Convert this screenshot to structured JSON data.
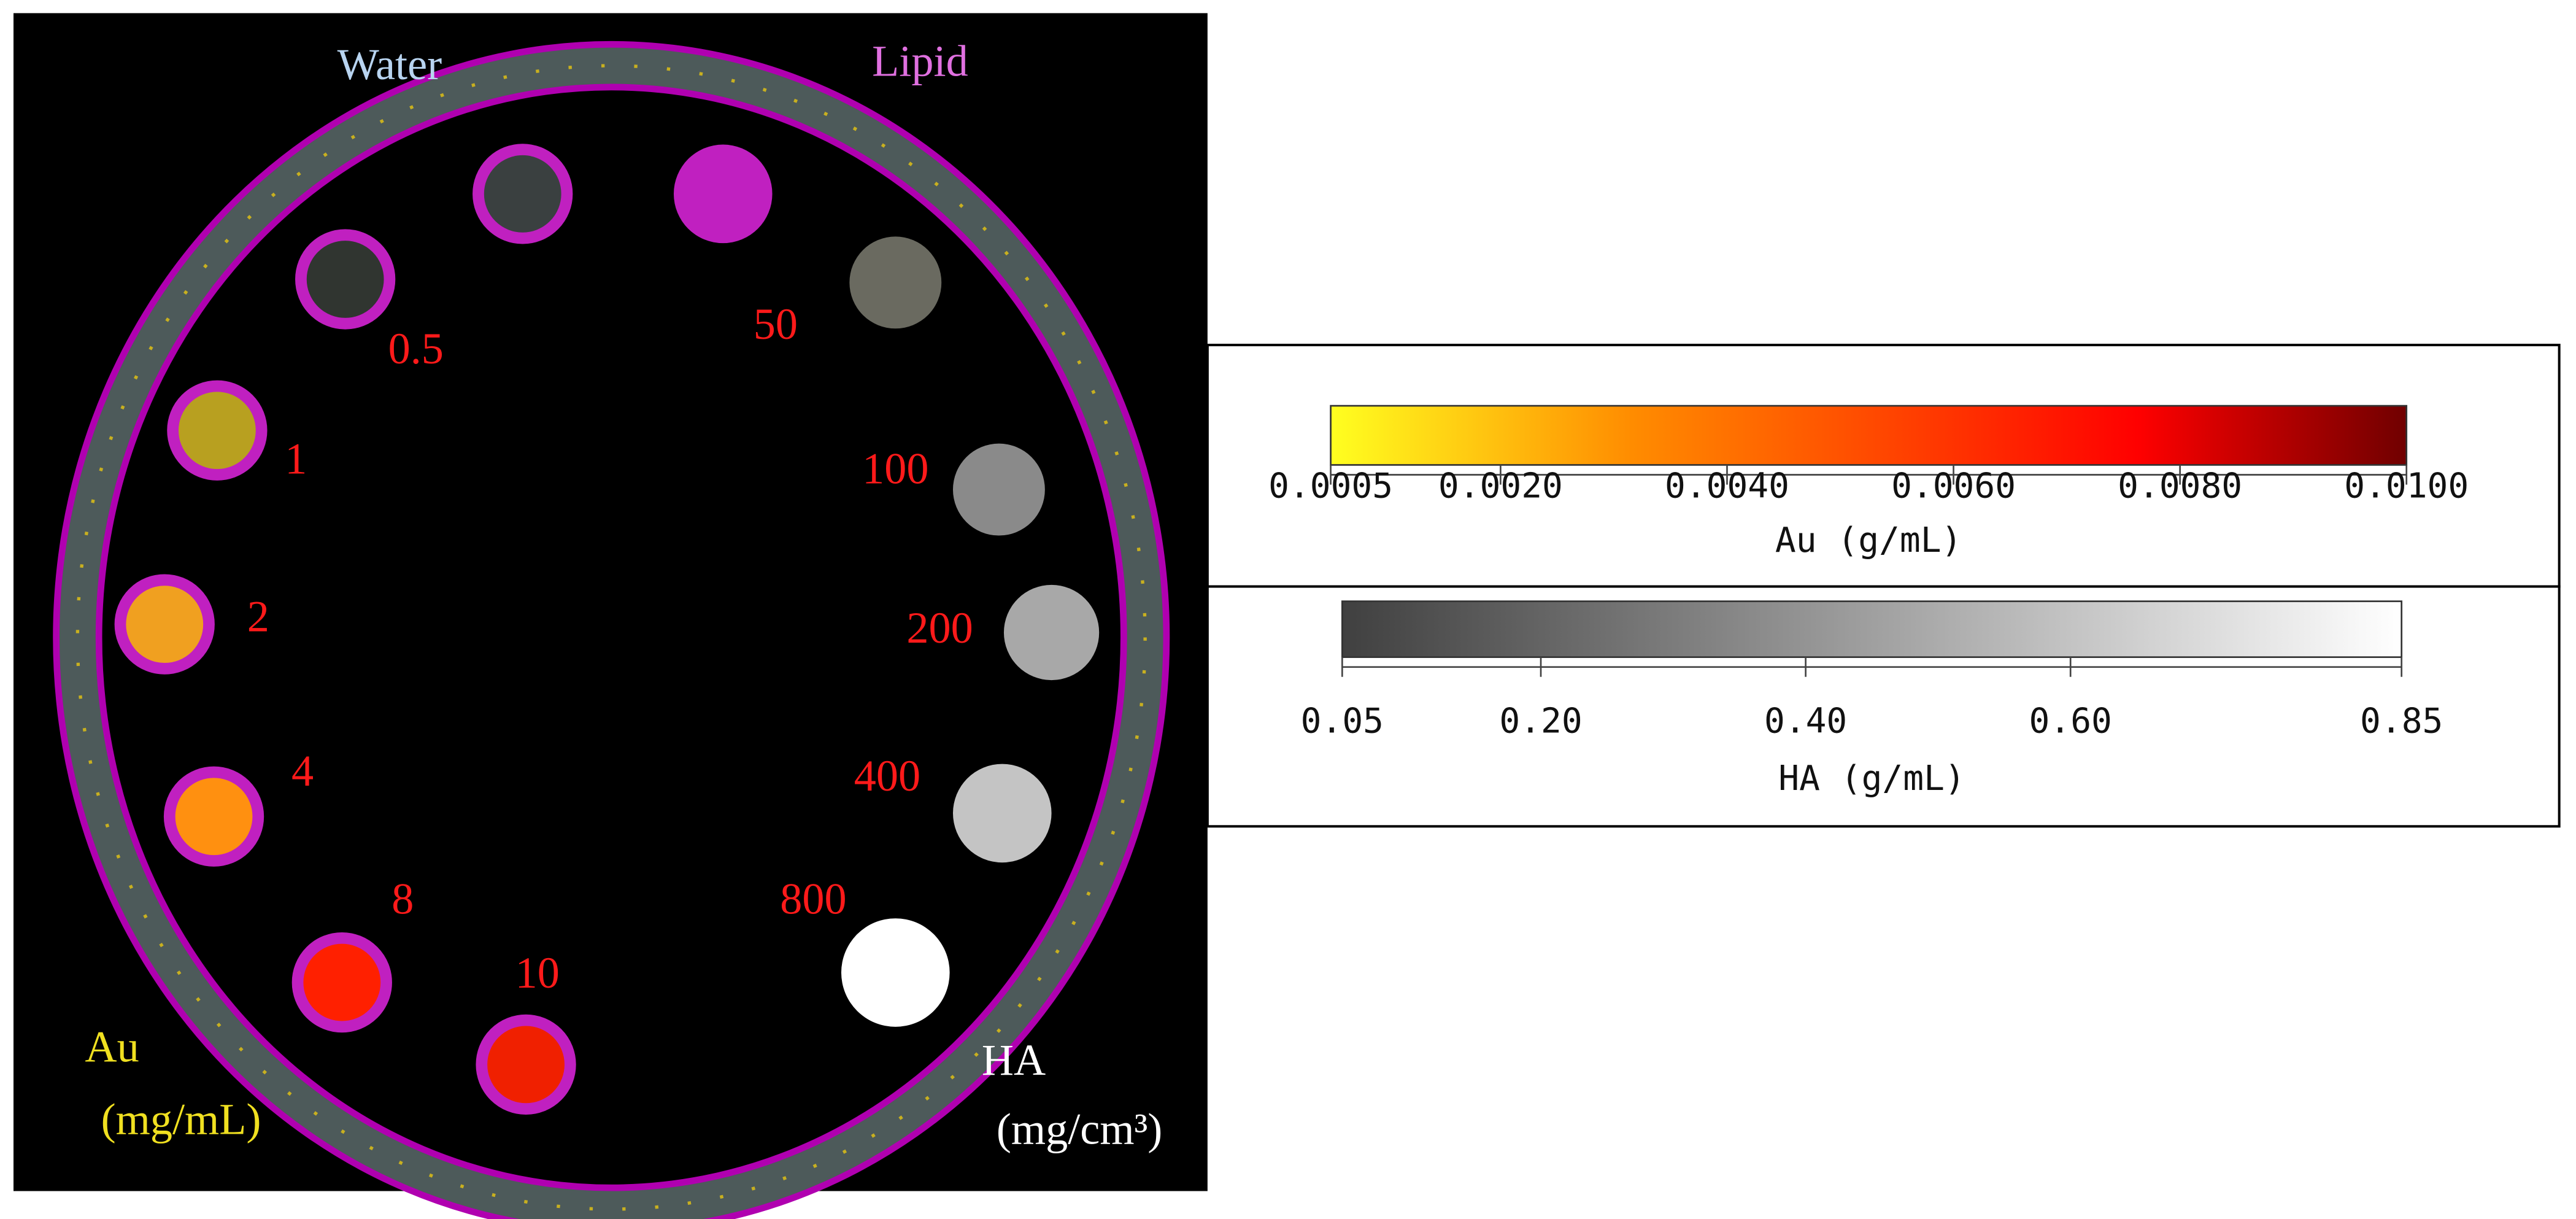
{
  "phantom": {
    "water_label": "Water",
    "lipid_label": "Lipid",
    "au_label": "Au",
    "au_unit": "(mg/mL)",
    "ha_label": "HA",
    "ha_unit": "(mg/cm³)",
    "au_vials": [
      "0.5",
      "1",
      "2",
      "4",
      "8",
      "10"
    ],
    "ha_vials": [
      "50",
      "100",
      "200",
      "400",
      "800"
    ]
  },
  "colorbars": [
    {
      "title": "Au (g/mL)",
      "range": [
        0.0005,
        0.01
      ],
      "ticks": [
        {
          "value": 0.0005,
          "label": "0.0005"
        },
        {
          "value": 0.002,
          "label": "0.0020"
        },
        {
          "value": 0.004,
          "label": "0.0040"
        },
        {
          "value": 0.006,
          "label": "0.0060"
        },
        {
          "value": 0.008,
          "label": "0.0080"
        },
        {
          "value": 0.01,
          "label": "0.0100"
        }
      ]
    },
    {
      "title": "HA (g/mL)",
      "range": [
        0.05,
        0.85
      ],
      "ticks": [
        {
          "value": 0.05,
          "label": "0.05"
        },
        {
          "value": 0.2,
          "label": "0.20"
        },
        {
          "value": 0.4,
          "label": "0.40"
        },
        {
          "value": 0.6,
          "label": "0.60"
        },
        {
          "value": 0.85,
          "label": "0.85"
        }
      ]
    }
  ]
}
